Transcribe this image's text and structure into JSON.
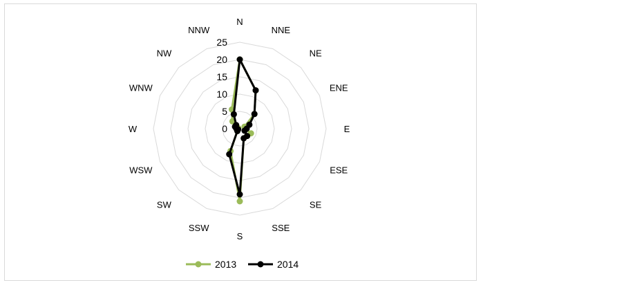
{
  "chart_data": {
    "type": "radar",
    "categories": [
      "N",
      "NNE",
      "NE",
      "ENE",
      "E",
      "ESE",
      "SE",
      "SSE",
      "S",
      "SSW",
      "SW",
      "WSW",
      "W",
      "WNW",
      "NW",
      "NNW"
    ],
    "radial_ticks": [
      "0",
      "5",
      "10",
      "15",
      "20",
      "25"
    ],
    "rlim": [
      0,
      25
    ],
    "grid": true,
    "legend_position": "bottom",
    "series": [
      {
        "name": "2013",
        "color": "#9bbb59",
        "values": [
          20,
          12,
          6,
          1.5,
          1.5,
          3.5,
          3,
          3,
          21,
          7,
          1,
          0.5,
          0.5,
          0.5,
          3,
          6
        ]
      },
      {
        "name": "2014",
        "color": "#000000",
        "values": [
          20,
          12,
          6,
          3,
          2,
          1.5,
          3,
          3,
          19,
          8,
          1,
          0.5,
          1,
          1.5,
          1.5,
          4.5
        ]
      }
    ]
  }
}
